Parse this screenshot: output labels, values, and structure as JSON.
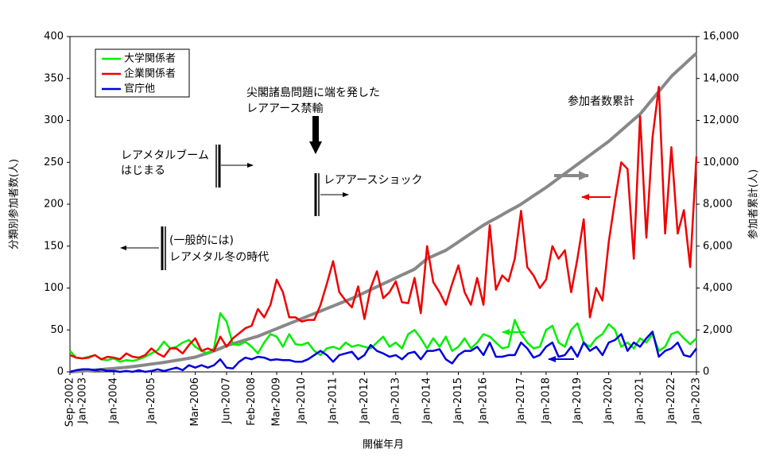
{
  "chart_data": {
    "type": "line",
    "x_label": "開催年月",
    "y_label": "分類別参加者数(人)",
    "y2_label": "参加者累計(人)",
    "categories": [
      "Sep-2002",
      null,
      "Jan-2003",
      null,
      null,
      null,
      null,
      "Jan-2004",
      null,
      null,
      null,
      null,
      null,
      "Jan-2005",
      null,
      null,
      null,
      null,
      null,
      null,
      "Mar-2006",
      null,
      null,
      null,
      null,
      "Jun-2007",
      null,
      null,
      null,
      "Feb-2008",
      null,
      null,
      null,
      "Mar-2009",
      null,
      null,
      null,
      "Jan-2010",
      null,
      null,
      null,
      null,
      "Jan-2011",
      null,
      null,
      null,
      null,
      "Jan-2012",
      null,
      null,
      null,
      null,
      "Jan-2013",
      null,
      null,
      null,
      null,
      "Jan-2014",
      null,
      null,
      null,
      null,
      "Jan-2015",
      null,
      null,
      null,
      "Jan-2016",
      null,
      null,
      null,
      null,
      null,
      "Jan-2017",
      null,
      null,
      null,
      "Jan-2018",
      null,
      null,
      null,
      null,
      "Jan-2019",
      null,
      null,
      null,
      null,
      "Jan-2020",
      null,
      null,
      null,
      null,
      "Jan-2021",
      null,
      null,
      null,
      null,
      "Jan-2022",
      null,
      null,
      null,
      "Jan-2023"
    ],
    "series": [
      {
        "name": "大学関係者",
        "color": "#00ee00",
        "values": [
          25,
          17,
          16,
          18,
          20,
          15,
          14,
          16,
          12,
          14,
          13,
          15,
          18,
          22,
          26,
          36,
          28,
          30,
          35,
          38,
          30,
          25,
          22,
          28,
          70,
          60,
          33,
          32,
          36,
          30,
          22,
          35,
          45,
          42,
          30,
          45,
          33,
          32,
          35,
          25,
          20,
          28,
          30,
          27,
          35,
          30,
          32,
          30,
          28,
          35,
          42,
          30,
          35,
          28,
          45,
          50,
          40,
          28,
          40,
          30,
          42,
          25,
          30,
          40,
          28,
          35,
          45,
          42,
          35,
          28,
          30,
          62,
          45,
          35,
          28,
          30,
          50,
          55,
          35,
          30,
          50,
          58,
          35,
          30,
          40,
          45,
          57,
          50,
          30,
          35,
          28,
          40,
          35,
          45,
          25,
          30,
          45,
          48,
          40,
          33,
          40
        ]
      },
      {
        "name": "企業関係者",
        "color": "#ee0000",
        "values": [
          20,
          17,
          16,
          17,
          20,
          15,
          18,
          17,
          15,
          22,
          18,
          17,
          20,
          28,
          22,
          18,
          28,
          28,
          22,
          32,
          40,
          25,
          28,
          25,
          42,
          30,
          40,
          46,
          52,
          55,
          75,
          65,
          80,
          110,
          95,
          65,
          65,
          60,
          62,
          62,
          80,
          105,
          132,
          95,
          85,
          77,
          102,
          63,
          100,
          120,
          88,
          95,
          108,
          83,
          82,
          112,
          70,
          150,
          107,
          95,
          80,
          105,
          127,
          95,
          80,
          112,
          80,
          175,
          98,
          115,
          108,
          135,
          192,
          125,
          115,
          100,
          110,
          150,
          135,
          145,
          95,
          135,
          182,
          65,
          100,
          85,
          155,
          205,
          250,
          242,
          135,
          305,
          160,
          280,
          340,
          165,
          268,
          165,
          193,
          125,
          257
        ]
      },
      {
        "name": "官庁他",
        "color": "#0000dd",
        "values": [
          0,
          2,
          3,
          3,
          2,
          3,
          1,
          1,
          0,
          1,
          0,
          2,
          0,
          1,
          3,
          1,
          3,
          5,
          2,
          8,
          5,
          8,
          5,
          8,
          15,
          5,
          4,
          12,
          17,
          15,
          18,
          17,
          14,
          15,
          14,
          14,
          12,
          12,
          15,
          20,
          25,
          20,
          12,
          20,
          22,
          24,
          15,
          20,
          32,
          25,
          22,
          18,
          20,
          15,
          22,
          24,
          15,
          25,
          25,
          27,
          15,
          10,
          20,
          25,
          25,
          30,
          20,
          35,
          18,
          18,
          20,
          20,
          35,
          28,
          17,
          20,
          30,
          35,
          18,
          20,
          30,
          18,
          35,
          25,
          30,
          20,
          35,
          38,
          45,
          25,
          35,
          30,
          40,
          48,
          18,
          25,
          28,
          35,
          20,
          18,
          28
        ]
      },
      {
        "name": "参加者数累計",
        "color": "#888888",
        "axis": "y2",
        "values": [
          0,
          20,
          40,
          60,
          85,
          110,
          135,
          160,
          190,
          220,
          250,
          290,
          330,
          370,
          410,
          450,
          500,
          550,
          600,
          650,
          700,
          800,
          900,
          1000,
          1120,
          1250,
          1340,
          1430,
          1520,
          1610,
          1700,
          1820,
          1940,
          2060,
          2180,
          2300,
          2420,
          2540,
          2660,
          2780,
          2900,
          3020,
          3140,
          3260,
          3380,
          3500,
          3640,
          3780,
          3920,
          4060,
          4200,
          4340,
          4480,
          4620,
          4760,
          4900,
          5150,
          5400,
          5530,
          5670,
          5800,
          6000,
          6200,
          6400,
          6600,
          6800,
          7000,
          7170,
          7330,
          7500,
          7670,
          7830,
          8000,
          8200,
          8400,
          8600,
          8800,
          9020,
          9240,
          9460,
          9680,
          9900,
          10120,
          10340,
          10560,
          10780,
          11000,
          11260,
          11520,
          11780,
          12040,
          12300,
          12660,
          13020,
          13380,
          13740,
          14100,
          14380,
          14650,
          14930,
          15200
        ]
      }
    ],
    "ylim": [
      0,
      400
    ],
    "yticks": [
      0,
      50,
      100,
      150,
      200,
      250,
      300,
      350,
      400
    ],
    "y2lim": [
      0,
      16000
    ],
    "y2ticks": [
      0,
      {
        "value": 2000,
        "label": "2,000"
      },
      {
        "value": 4000,
        "label": "4,000"
      },
      {
        "value": 6000,
        "label": "6,000"
      },
      {
        "value": 8000,
        "label": "8,000"
      },
      {
        "value": 10000,
        "label": "10,000"
      },
      {
        "value": 12000,
        "label": "12,000"
      },
      {
        "value": 14000,
        "label": "14,000"
      },
      {
        "value": 16000,
        "label": "16,000"
      }
    ],
    "grid": false,
    "legend": "upper left",
    "annotations": [
      {
        "lines": [
          "尖閣諸島問題に端を発した",
          "レアアース禁輸"
        ]
      },
      {
        "lines": [
          "レアメタルブーム",
          "はじまる"
        ]
      },
      {
        "lines": [
          "レアアースショック"
        ]
      },
      {
        "lines": [
          "(一般的には)",
          "レアメタル冬の時代"
        ]
      }
    ]
  }
}
